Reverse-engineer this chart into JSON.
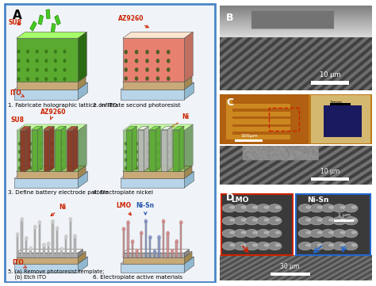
{
  "fig_bg": "#ffffff",
  "panel_A_border": "#4a86c8",
  "panel_A_bg": "#f5f5f5",
  "step_labels": [
    "1. Fabricate holographic lattice on ITO",
    "2. Infiltrate second photoresist",
    "3. Define battery electrode pattern",
    "4. Electroplate nickel",
    "5. (a) Remove photoresist template;\n    (b) Etch ITO",
    "6. Electroplate active materials"
  ],
  "colors": {
    "ito_base": "#b8d4e8",
    "substrate": "#c8aa78",
    "green_lattice": "#5aaa30",
    "green_dark": "#3a7a18",
    "red_photoresist": "#e88070",
    "red_overlay": "#e8a090",
    "dark_red_post": "#883020",
    "nickel": "#b8b8b8",
    "nickel_dark": "#888888",
    "lmo_pink": "#d08888",
    "nisi_blue": "#8090c0",
    "label_red": "#cc2200",
    "label_blue": "#2255aa"
  }
}
